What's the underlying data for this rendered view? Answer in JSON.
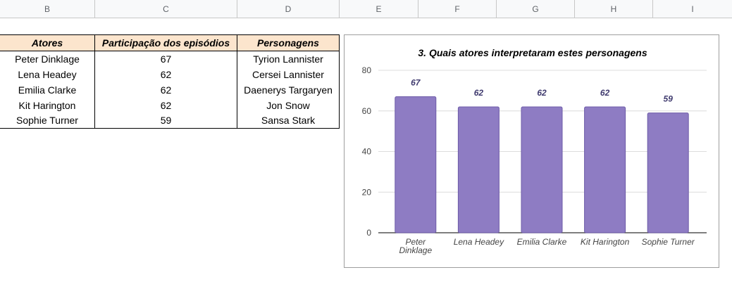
{
  "columns": [
    "B",
    "C",
    "D",
    "E",
    "F",
    "G",
    "H",
    "I"
  ],
  "table": {
    "headers": [
      "Atores",
      "Participação dos episódios",
      "Personagens"
    ],
    "rows": [
      [
        "Peter Dinklage",
        "67",
        "Tyrion Lannister"
      ],
      [
        "Lena Headey",
        "62",
        "Cersei Lannister"
      ],
      [
        "Emilia Clarke",
        "62",
        "Daenerys Targaryen"
      ],
      [
        "Kit Harington",
        "62",
        "Jon Snow"
      ],
      [
        "Sophie Turner",
        "59",
        "Sansa Stark"
      ]
    ]
  },
  "chart_data": {
    "type": "bar",
    "title": "3. Quais atores interpretaram estes personagens",
    "categories": [
      "Peter Dinklage",
      "Lena Headey",
      "Emilia Clarke",
      "Kit Harington",
      "Sophie Turner"
    ],
    "values": [
      67,
      62,
      62,
      62,
      59
    ],
    "ylim": [
      0,
      80
    ],
    "yticks": [
      0,
      20,
      40,
      60,
      80
    ],
    "grid": true,
    "bar_color": "#8e7cc3",
    "bar_border_color": "#6d5ba8",
    "data_label_color": "#3f3a6e"
  }
}
